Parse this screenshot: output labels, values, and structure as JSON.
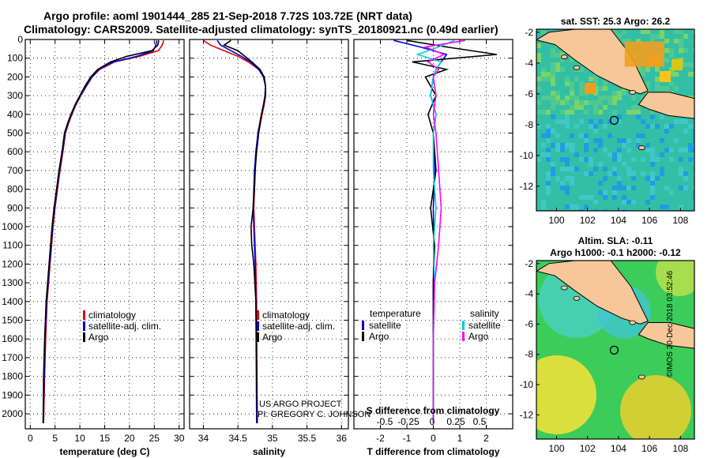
{
  "header": {
    "line1": "Argo profile: aoml 1901444_285 21-Sep-2018 7.72S 103.72E (NRT data)",
    "line2": "Climatology: CARS2009. Satellite-adjusted climatology: synTS_20180921.nc (0.49d earlier)"
  },
  "footer": {
    "project": "US ARGO PROJECT",
    "pi": "PI: GREGORY C. JOHNSON",
    "stamp": "©IMOS 20-Dec-2018 03:52:46"
  },
  "colors": {
    "climatology": "#e00000",
    "satellite": "#0000e0",
    "argo": "#000000",
    "salinity_satellite": "#00d0d0",
    "salinity_argo": "#ff00ff",
    "land": "#f7c79a"
  },
  "chart_data": [
    {
      "id": "temperature",
      "type": "line",
      "xlabel": "temperature (deg C)",
      "xlim": [
        -1,
        31
      ],
      "xticks": [
        0,
        5,
        10,
        15,
        20,
        25,
        30
      ],
      "ylim": [
        0,
        2080
      ],
      "yticks": [
        0,
        100,
        200,
        300,
        400,
        500,
        600,
        700,
        800,
        900,
        1000,
        1100,
        1200,
        1300,
        1400,
        1500,
        1600,
        1700,
        1800,
        1900,
        2000
      ],
      "legend": [
        "climatology",
        "satellite-adj. clim.",
        "Argo"
      ],
      "series": [
        {
          "name": "climatology",
          "color": "#e00000",
          "x": [
            26.9,
            26.6,
            25.8,
            22,
            17,
            14,
            12.5,
            11.3,
            10.2,
            9.2,
            8.4,
            7.7,
            7.1,
            6.6,
            6.0,
            5.5,
            5.0,
            4.6,
            4.3,
            4.0,
            3.7,
            3.4,
            3.1,
            2.9,
            2.7
          ],
          "y": [
            5,
            30,
            60,
            90,
            120,
            160,
            200,
            250,
            300,
            350,
            400,
            450,
            500,
            600,
            700,
            800,
            900,
            1000,
            1100,
            1200,
            1300,
            1400,
            1600,
            1800,
            2050
          ]
        },
        {
          "name": "satellite-adj. clim.",
          "color": "#0000e0",
          "x": [
            25.5,
            25.3,
            24.8,
            21.5,
            16.8,
            13.8,
            12.4,
            11.2,
            10.1,
            9.1,
            8.3,
            7.6,
            7.0,
            6.5,
            5.9,
            5.4,
            4.9,
            4.5,
            4.2,
            3.9,
            3.6,
            3.3,
            3.0,
            2.8,
            2.6
          ],
          "y": [
            5,
            30,
            60,
            90,
            120,
            160,
            200,
            250,
            300,
            350,
            400,
            450,
            500,
            600,
            700,
            800,
            900,
            1000,
            1100,
            1200,
            1300,
            1400,
            1600,
            1800,
            2050
          ]
        },
        {
          "name": "Argo",
          "color": "#000000",
          "x": [
            25.9,
            25.7,
            24.5,
            19.5,
            16.2,
            13.6,
            12.2,
            11.0,
            10.0,
            9.0,
            8.2,
            7.5,
            6.9,
            6.4,
            5.8,
            5.3,
            4.8,
            4.4,
            4.1,
            3.8,
            3.5,
            3.2,
            2.9,
            2.7,
            2.6
          ],
          "y": [
            5,
            30,
            60,
            90,
            120,
            160,
            200,
            250,
            300,
            350,
            400,
            450,
            500,
            600,
            700,
            800,
            900,
            1000,
            1100,
            1200,
            1300,
            1400,
            1600,
            1800,
            2050
          ]
        }
      ]
    },
    {
      "id": "salinity",
      "type": "line",
      "xlabel": "salinity",
      "xlim": [
        33.8,
        36.1
      ],
      "xticks": [
        34,
        34.5,
        35,
        35.5,
        36
      ],
      "ylim": [
        0,
        2080
      ],
      "legend": [
        "climatology",
        "satellite-adj. clim.",
        "Argo"
      ],
      "series": [
        {
          "name": "climatology",
          "color": "#e00000",
          "x": [
            34.0,
            34.1,
            34.3,
            34.5,
            34.65,
            34.8,
            34.88,
            34.9,
            34.9,
            34.88,
            34.85,
            34.8,
            34.76,
            34.75,
            34.74,
            34.73,
            34.74,
            34.75,
            34.76,
            34.77,
            34.78
          ],
          "y": [
            5,
            30,
            60,
            90,
            120,
            160,
            200,
            250,
            300,
            350,
            400,
            500,
            600,
            700,
            800,
            900,
            1000,
            1100,
            1200,
            1400,
            2050
          ]
        },
        {
          "name": "satellite-adj. clim.",
          "color": "#0000e0",
          "x": [
            34.2,
            34.25,
            34.4,
            34.55,
            34.68,
            34.8,
            34.87,
            34.9,
            34.89,
            34.87,
            34.84,
            34.79,
            34.76,
            34.74,
            34.73,
            34.72,
            34.73,
            34.74,
            34.75,
            34.76,
            34.77
          ],
          "y": [
            5,
            30,
            60,
            90,
            120,
            160,
            200,
            250,
            300,
            350,
            400,
            500,
            600,
            700,
            800,
            900,
            1000,
            1100,
            1200,
            1400,
            2050
          ]
        },
        {
          "name": "Argo",
          "color": "#000000",
          "x": [
            34.4,
            34.3,
            34.5,
            34.6,
            34.7,
            34.82,
            34.88,
            34.9,
            34.9,
            34.87,
            34.84,
            34.8,
            34.77,
            34.75,
            34.74,
            34.72,
            34.69,
            34.7,
            34.73,
            34.76,
            34.78
          ],
          "y": [
            5,
            30,
            60,
            90,
            120,
            160,
            200,
            250,
            300,
            350,
            400,
            500,
            600,
            700,
            800,
            900,
            1000,
            1100,
            1200,
            1400,
            2050
          ]
        }
      ]
    },
    {
      "id": "difference",
      "type": "line",
      "xlabel": "T difference from climatology",
      "xlabel_top": "S difference from climatology",
      "xlim": [
        -3,
        3
      ],
      "xticks": [
        -2,
        -1,
        0,
        1,
        2
      ],
      "top_ticks": [
        -0.5,
        -0.25,
        0,
        0.25,
        0.5
      ],
      "top_tick_labels": [
        "-0.5",
        "-0.25",
        "0",
        "0.25",
        "0.5"
      ],
      "ylim": [
        0,
        2080
      ],
      "legend_left_title": "temperature",
      "legend_right_title": "salinity",
      "legend": [
        "satellite",
        "Argo"
      ],
      "series": [
        {
          "name": "T satellite",
          "color": "#0000e0",
          "x": [
            -1.5,
            -0.5,
            0.5,
            0.3,
            0.1,
            0.0,
            -0.1,
            0.1,
            0.0,
            0.05,
            0.0,
            0.02,
            0.0,
            0.0,
            0.0
          ],
          "y": [
            5,
            40,
            80,
            120,
            160,
            200,
            300,
            400,
            500,
            700,
            900,
            1100,
            1300,
            1600,
            2050
          ]
        },
        {
          "name": "T Argo",
          "color": "#000000",
          "x": [
            -1.0,
            0.5,
            2.4,
            -0.8,
            0.5,
            -0.3,
            0.1,
            -0.2,
            0.0,
            0.1,
            -0.1,
            0.05,
            0.0,
            0.0,
            0.0
          ],
          "y": [
            5,
            40,
            80,
            120,
            160,
            200,
            300,
            400,
            500,
            700,
            900,
            1100,
            1300,
            1600,
            2050
          ]
        },
        {
          "name": "S satellite",
          "color": "#00d0d0",
          "x": [
            0.8,
            0.2,
            -0.6,
            0.3,
            0.1,
            0.0,
            -0.1,
            0.1,
            0.0,
            0.0,
            0.1,
            0.0,
            0.05,
            0.0,
            0.0
          ],
          "y": [
            5,
            40,
            80,
            120,
            160,
            200,
            300,
            400,
            500,
            700,
            900,
            1100,
            1300,
            1600,
            2050
          ]
        },
        {
          "name": "S Argo",
          "color": "#ff00ff",
          "x": [
            1.2,
            -0.3,
            0.4,
            -0.2,
            0.2,
            0.0,
            0.1,
            0.0,
            0.1,
            0.2,
            0.3,
            0.2,
            0.05,
            0.0,
            0.0
          ],
          "y": [
            5,
            40,
            80,
            120,
            160,
            200,
            300,
            400,
            500,
            700,
            900,
            1100,
            1300,
            1600,
            2050
          ]
        }
      ]
    },
    {
      "id": "sst-map",
      "type": "heatmap",
      "title": "sat. SST: 25.3 Argo: 26.2",
      "xlim": [
        98.7,
        108.9
      ],
      "ylim": [
        -13.6,
        -1.8
      ],
      "xticks": [
        100,
        102,
        104,
        106,
        108
      ],
      "yticks": [
        -2,
        -4,
        -6,
        -8,
        -10,
        -12
      ],
      "argo_position": [
        103.72,
        -7.72
      ]
    },
    {
      "id": "sla-map",
      "type": "heatmap",
      "title": "Altim. SLA: -0.11",
      "subtitle": "Argo h1000: -0.1 h2000: -0.12",
      "xlim": [
        98.7,
        108.9
      ],
      "ylim": [
        -13.6,
        -1.8
      ],
      "xticks": [
        100,
        102,
        104,
        106,
        108
      ],
      "yticks": [
        -2,
        -4,
        -6,
        -8,
        -10,
        -12
      ],
      "argo_position": [
        103.72,
        -7.72
      ]
    }
  ]
}
